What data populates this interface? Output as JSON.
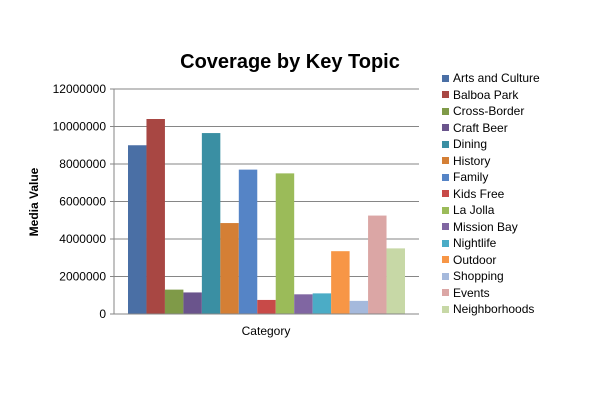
{
  "chart_data": {
    "type": "bar",
    "title": "Coverage by Key Topic",
    "xlabel": "Category",
    "ylabel": "Media Value",
    "ylim": [
      0,
      12000000
    ],
    "y_ticks": [
      "0",
      "2000000",
      "4000000",
      "6000000",
      "8000000",
      "10000000",
      "12000000"
    ],
    "y_tick_values": [
      0,
      2000000,
      4000000,
      6000000,
      8000000,
      10000000,
      12000000
    ],
    "grid": true,
    "legend_position": "right",
    "series": [
      {
        "name": "Arts and Culture",
        "value": 9000000,
        "color": "#4a6fa5"
      },
      {
        "name": "Balboa Park",
        "value": 10400000,
        "color": "#a84743"
      },
      {
        "name": "Cross-Border",
        "value": 1300000,
        "color": "#7f9a48"
      },
      {
        "name": "Craft Beer",
        "value": 1150000,
        "color": "#6a548c"
      },
      {
        "name": "Dining",
        "value": 9650000,
        "color": "#3a8fa3"
      },
      {
        "name": "History",
        "value": 4850000,
        "color": "#d47f35"
      },
      {
        "name": "Family",
        "value": 7700000,
        "color": "#5584c6"
      },
      {
        "name": "Kids Free",
        "value": 750000,
        "color": "#c84a48"
      },
      {
        "name": "La Jolla",
        "value": 7500000,
        "color": "#9bbb59"
      },
      {
        "name": "Mission Bay",
        "value": 1050000,
        "color": "#8066a2"
      },
      {
        "name": "Nightlife",
        "value": 1100000,
        "color": "#4bacc6"
      },
      {
        "name": "Outdoor",
        "value": 3350000,
        "color": "#f79646"
      },
      {
        "name": "Shopping",
        "value": 700000,
        "color": "#a5b9dc"
      },
      {
        "name": "Events",
        "value": 5250000,
        "color": "#dba6a5"
      },
      {
        "name": "Neighborhoods",
        "value": 3500000,
        "color": "#c7d8a6"
      }
    ]
  }
}
